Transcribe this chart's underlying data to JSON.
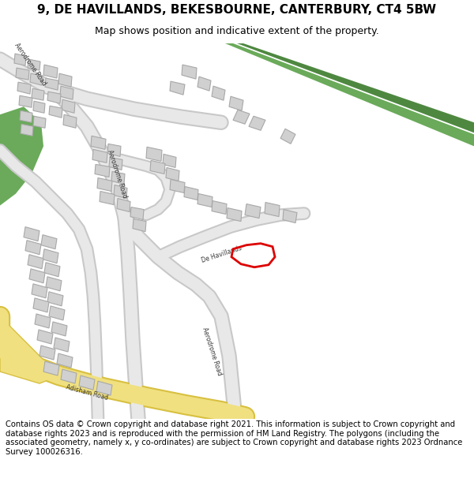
{
  "title": "9, DE HAVILLANDS, BEKESBOURNE, CANTERBURY, CT4 5BW",
  "subtitle": "Map shows position and indicative extent of the property.",
  "footer": "Contains OS data © Crown copyright and database right 2021. This information is subject to Crown copyright and database rights 2023 and is reproduced with the permission of HM Land Registry. The polygons (including the associated geometry, namely x, y co-ordinates) are subject to Crown copyright and database rights 2023 Ordnance Survey 100026316.",
  "bg_color": "#ffffff",
  "map_bg": "#f8f8f8",
  "road_fill": "#e8e8e8",
  "road_edge": "#c8c8c8",
  "yellow_fill": "#f0e080",
  "yellow_edge": "#d8c040",
  "green1": "#6aaa5a",
  "green2": "#4e8840",
  "bld_fill": "#d0d0d0",
  "bld_edge": "#a8a8a8",
  "plot_red": "#dd0000",
  "title_fs": 11,
  "subtitle_fs": 9,
  "footer_fs": 7.2
}
